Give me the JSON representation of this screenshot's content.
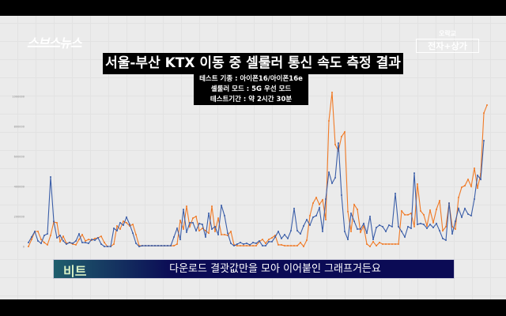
{
  "header": {
    "logo": "스브스뉴스",
    "corner_small": "오락교",
    "corner_boxed": "전자+상가"
  },
  "title": "서울-부산 KTX 이동 중 셀룰러 통신 속도 측정 결과",
  "subtitle_lines": [
    "테스트 기종 : 아이폰16/아이폰16e",
    "셀룰러 모드 : 5G 우선 모드",
    "테스트기간 : 약 2시간 30분"
  ],
  "caption": {
    "speaker": "비트",
    "text": "다운로드 결괏값만을 모아 이어붙인 그래프거든요"
  },
  "colors": {
    "series_orange": "#f07a26",
    "series_blue": "#3b5ea8",
    "caption_bg": "#0b0b55"
  },
  "chart_data": {
    "type": "line",
    "title": "",
    "xlabel": "",
    "ylabel": "",
    "ylim": [
      0,
      1000000
    ],
    "yticks": [
      0,
      200000,
      400000,
      600000,
      800000,
      1000000
    ],
    "grid": true,
    "legend": "none",
    "series": [
      {
        "color": "#3b5ea8",
        "values": [
          26000,
          63000,
          100000,
          37000,
          21000,
          74000,
          84000,
          463000,
          168000,
          58000,
          74000,
          37000,
          16000,
          26000,
          21000,
          37000,
          84000,
          26000,
          26000,
          21000,
          47000,
          42000,
          58000,
          16000,
          0,
          0,
          0,
          121000,
          105000,
          158000,
          142000,
          195000,
          147000,
          89000,
          21000,
          0,
          5000,
          5000,
          5000,
          5000,
          5000,
          5000,
          5000,
          5000,
          5000,
          5000,
          63000,
          121000,
          47000,
          247000,
          95000,
          158000,
          158000,
          105000,
          153000,
          147000,
          63000,
          221000,
          116000,
          132000,
          79000,
          274000,
          205000,
          89000,
          21000,
          5000,
          16000,
          26000,
          16000,
          21000,
          11000,
          26000,
          21000,
          37000,
          5000,
          5000,
          32000,
          32000,
          63000,
          100000,
          53000,
          79000,
          53000,
          105000,
          253000,
          105000,
          84000,
          137000,
          179000,
          142000,
          195000,
          205000,
          258000,
          100000,
          316000,
          495000,
          421000,
          458000,
          689000,
          342000,
          100000,
          47000,
          221000,
          168000,
          116000,
          116000,
          153000,
          89000,
          200000,
          47000,
          126000,
          142000,
          132000,
          100000,
          142000,
          132000,
          353000,
          132000,
          100000,
          63000,
          132000,
          121000,
          489000,
          147000,
          153000,
          147000,
          121000,
          147000,
          126000,
          153000,
          105000,
          53000,
          42000,
          289000,
          84000,
          168000,
          253000,
          195000,
          253000,
          216000,
          205000,
          316000,
          474000,
          447000,
          705000,
          null
        ]
      },
      {
        "color": "#f07a26",
        "values": [
          0,
          47000,
          100000,
          100000,
          47000,
          26000,
          11000,
          74000,
          163000,
          158000,
          32000,
          68000,
          21000,
          26000,
          16000,
          11000,
          47000,
          79000,
          37000,
          47000,
          42000,
          53000,
          58000,
          68000,
          26000,
          0,
          0,
          16000,
          137000,
          116000,
          168000,
          158000,
          137000,
          147000,
          79000,
          5000,
          5000,
          5000,
          5000,
          5000,
          5000,
          5000,
          5000,
          5000,
          5000,
          5000,
          5000,
          16000,
          174000,
          116000,
          268000,
          132000,
          189000,
          200000,
          105000,
          121000,
          105000,
          89000,
          268000,
          100000,
          189000,
          79000,
          79000,
          74000,
          100000,
          11000,
          5000,
          5000,
          5000,
          5000,
          5000,
          5000,
          5000,
          32000,
          47000,
          21000,
          47000,
          58000,
          74000,
          11000,
          11000,
          5000,
          5000,
          5000,
          5000,
          5000,
          26000,
          0,
          42000,
          205000,
          289000,
          326000,
          279000,
          311000,
          179000,
          837000,
          1026000,
          679000,
          637000,
          732000,
          763000,
          232000,
          100000,
          279000,
          247000,
          95000,
          137000,
          16000,
          0,
          32000,
          5000,
          26000,
          16000,
          16000,
          16000,
          16000,
          16000,
          16000,
          237000,
          211000,
          211000,
          221000,
          132000,
          416000,
          237000,
          211000,
          137000,
          242000,
          158000,
          247000,
          305000,
          105000,
          132000,
          289000,
          132000,
          116000,
          326000,
          395000,
          405000,
          447000,
          400000,
          521000,
          389000,
          484000,
          889000,
          942000
        ]
      }
    ]
  }
}
